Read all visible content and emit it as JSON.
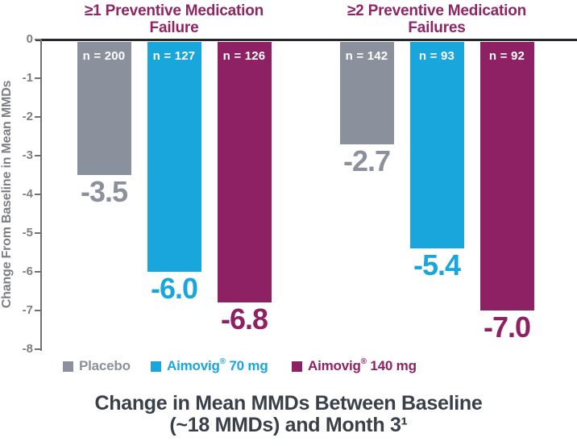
{
  "chart_data": {
    "type": "bar",
    "title_line1": "Change in Mean MMDs Between Baseline",
    "title_line2": "(~18 MMDs) and Month 3¹",
    "ylabel": "Change From Baseline in Mean MMDs",
    "ylim": [
      -8,
      0
    ],
    "yticks": [
      "0",
      "-1",
      "-2",
      "-3",
      "-4",
      "-5",
      "-6",
      "-7",
      "-8"
    ],
    "grid": false,
    "legend_position": "bottom",
    "groups": [
      {
        "label": "≥1 Preventive Medication Failure",
        "bars": [
          {
            "series": "Placebo",
            "n_label": "n = 200",
            "value": -3.5,
            "value_label": "-3.5"
          },
          {
            "series": "Aimovig® 70 mg",
            "n_label": "n = 127",
            "value": -6.0,
            "value_label": "-6.0"
          },
          {
            "series": "Aimovig® 140 mg",
            "n_label": "n = 126",
            "value": -6.8,
            "value_label": "-6.8"
          }
        ]
      },
      {
        "label": "≥2 Preventive Medication Failures",
        "bars": [
          {
            "series": "Placebo",
            "n_label": "n = 142",
            "value": -2.7,
            "value_label": "-2.7"
          },
          {
            "series": "Aimovig® 70 mg",
            "n_label": "n = 93",
            "value": -5.4,
            "value_label": "-5.4"
          },
          {
            "series": "Aimovig® 140 mg",
            "n_label": "n = 92",
            "value": -7.0,
            "value_label": "-7.0"
          }
        ]
      }
    ],
    "legend": [
      {
        "brand": "Placebo",
        "reg_mark": "",
        "rest": "",
        "color": "#8B919C"
      },
      {
        "brand": "Aimovig",
        "reg_mark": "®",
        "rest": " 70 mg",
        "color": "#18A6DC"
      },
      {
        "brand": "Aimovig",
        "reg_mark": "®",
        "rest": " 140 mg",
        "color": "#8E2164"
      }
    ],
    "colors": {
      "placebo": "#8B919C",
      "aimovig_70": "#18A6DC",
      "aimovig_140": "#8E2164",
      "group_header": "#8F2566",
      "title_text": "#3A4049",
      "axis_text": "#7C7E83",
      "axis_line": "#6F7175",
      "zero_line": "#26282D"
    }
  }
}
